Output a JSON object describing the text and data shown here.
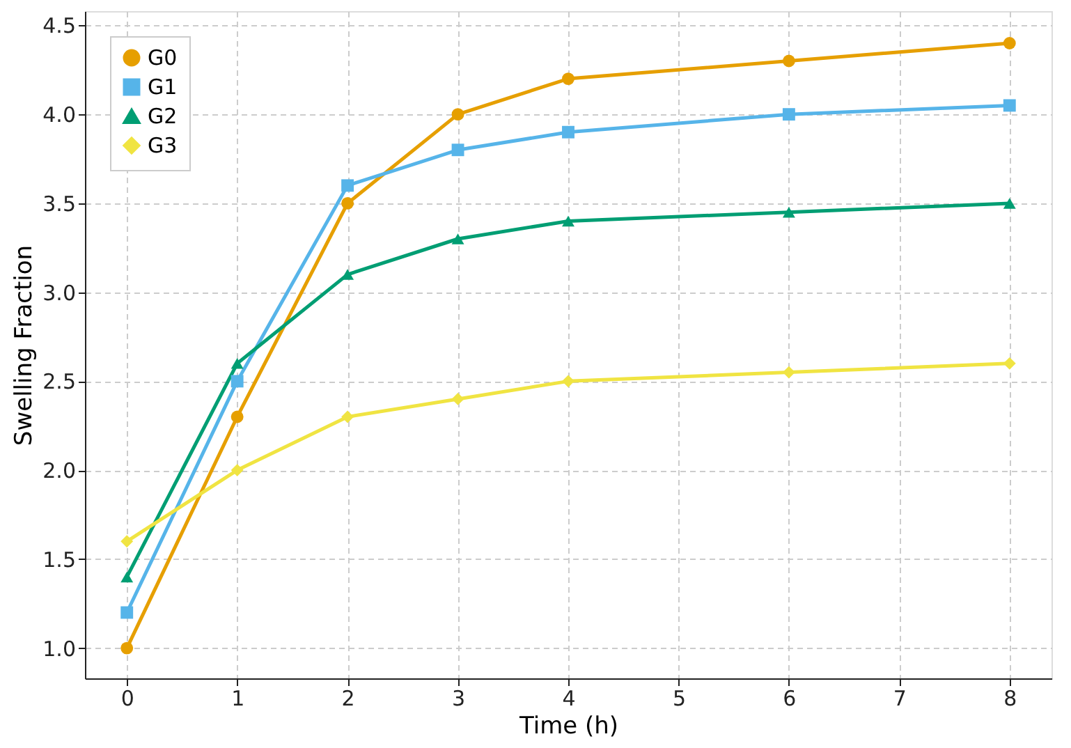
{
  "chart_data": {
    "type": "line",
    "xlabel": "Time (h)",
    "ylabel": "Swelling Fraction",
    "x": [
      0,
      1,
      2,
      3,
      4,
      6,
      8
    ],
    "series": [
      {
        "name": "G0",
        "color": "#e69f00",
        "marker": "circle",
        "values": [
          1.0,
          2.3,
          3.5,
          4.0,
          4.2,
          4.3,
          4.4
        ]
      },
      {
        "name": "G1",
        "color": "#56b4e9",
        "marker": "square",
        "values": [
          1.2,
          2.5,
          3.6,
          3.8,
          3.9,
          4.0,
          4.05
        ]
      },
      {
        "name": "G2",
        "color": "#009e73",
        "marker": "triangle",
        "values": [
          1.4,
          2.6,
          3.1,
          3.3,
          3.4,
          3.45,
          3.5
        ]
      },
      {
        "name": "G3",
        "color": "#f0e442",
        "marker": "diamond",
        "values": [
          1.6,
          2.0,
          2.3,
          2.4,
          2.5,
          2.55,
          2.6
        ]
      }
    ],
    "xlim": [
      -0.38,
      8.38
    ],
    "xticks": [
      0,
      1,
      2,
      3,
      4,
      5,
      6,
      7,
      8
    ],
    "ylim": [
      0.83,
      4.58
    ],
    "yticks": [
      {
        "value": 1,
        "label": "1.0"
      },
      1.5,
      {
        "value": 2,
        "label": "2.0"
      },
      2.5,
      {
        "value": 3,
        "label": "3.0"
      },
      3.5,
      {
        "value": 4,
        "label": "4.0"
      },
      4.5
    ],
    "grid": true,
    "legend": "top left",
    "line_style": "solid"
  }
}
